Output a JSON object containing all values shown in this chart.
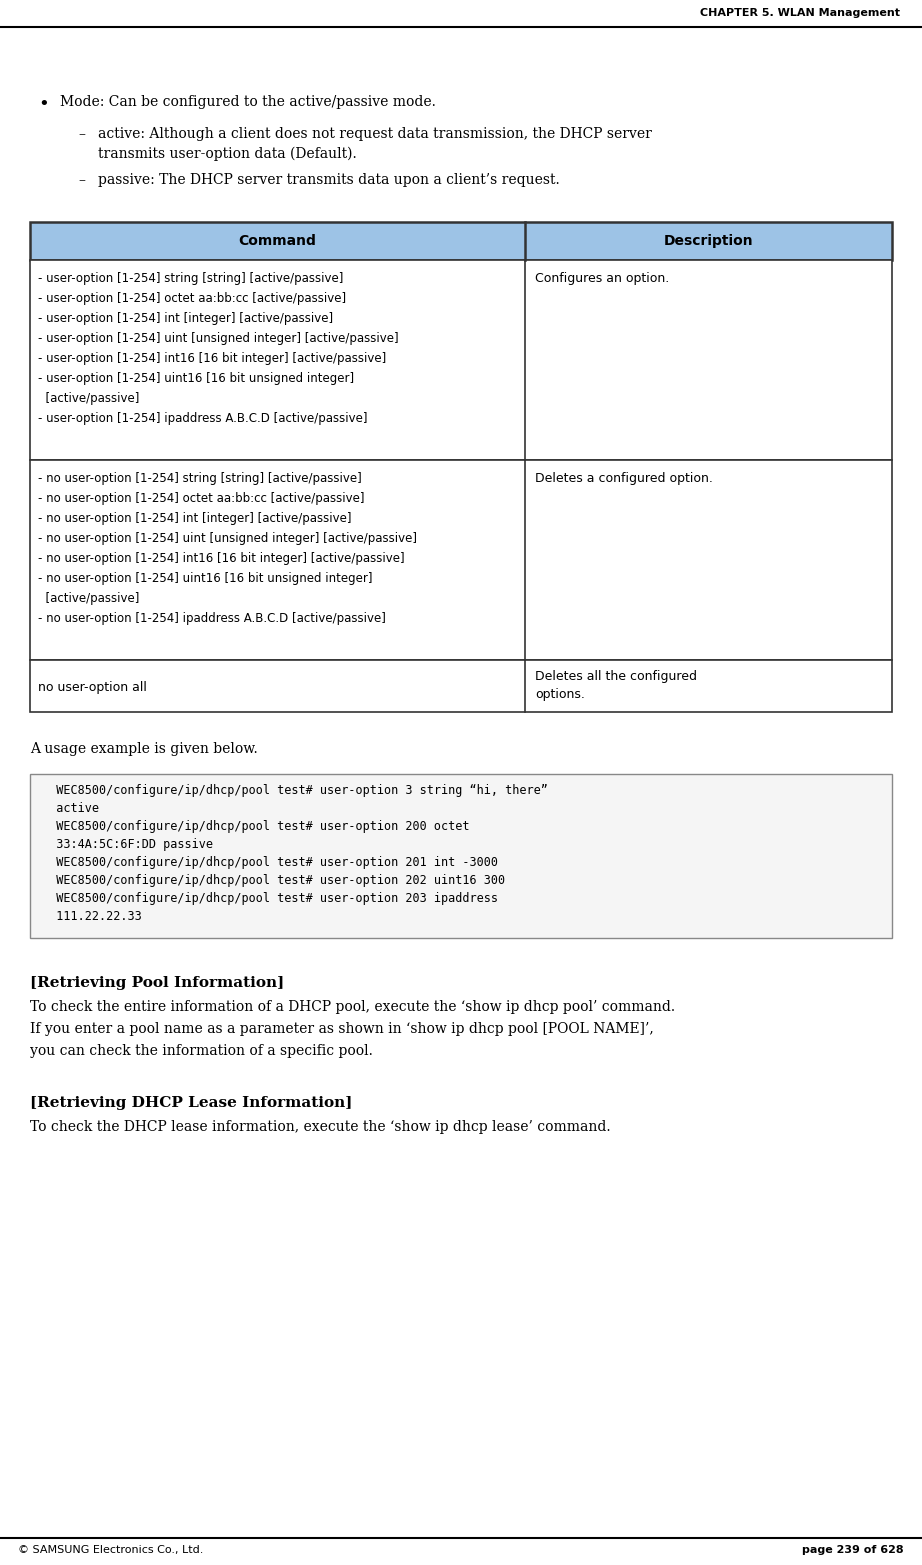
{
  "header_text": "CHAPTER 5. WLAN Management",
  "footer_left": "© SAMSUNG Electronics Co., Ltd.",
  "footer_right": "page 239 of 628",
  "bullet_main": "Mode: Can be configured to the active/passive mode.",
  "sub1_label": "active:",
  "sub1_rest": " Although a client does not request data transmission, the DHCP server\n        transmits user-option data (Default).",
  "sub2_label": "passive:",
  "sub2_rest": " The DHCP server transmits data upon a client’s request.",
  "table_header_bg": "#9DC3E6",
  "table_header_col1": "Command",
  "table_header_col2": "Description",
  "table_row1_lines": [
    "- user-option [1-254] string [string] [active/passive]",
    "- user-option [1-254] octet aa:bb:cc [active/passive]",
    "- user-option [1-254] int [integer] [active/passive]",
    "- user-option [1-254] uint [unsigned integer] [active/passive]",
    "- user-option [1-254] int16 [16 bit integer] [active/passive]",
    "- user-option [1-254] uint16 [16 bit unsigned integer]",
    "  [active/passive]",
    "- user-option [1-254] ipaddress A.B.C.D [active/passive]"
  ],
  "table_row1_col2": "Configures an option.",
  "table_row2_lines": [
    "- no user-option [1-254] string [string] [active/passive]",
    "- no user-option [1-254] octet aa:bb:cc [active/passive]",
    "- no user-option [1-254] int [integer] [active/passive]",
    "- no user-option [1-254] uint [unsigned integer] [active/passive]",
    "- no user-option [1-254] int16 [16 bit integer] [active/passive]",
    "- no user-option [1-254] uint16 [16 bit unsigned integer]",
    "  [active/passive]",
    "- no user-option [1-254] ipaddress A.B.C.D [active/passive]"
  ],
  "table_row2_col2": "Deletes a configured option.",
  "table_row3_col1": "no user-option all",
  "table_row3_col2": "Deletes all the configured\noptions.",
  "usage_intro": "A usage example is given below.",
  "code_lines": [
    "  WEC8500/configure/ip/dhcp/pool test# user-option 3 string “hi, there”",
    "  active",
    "  WEC8500/configure/ip/dhcp/pool test# user-option 200 octet",
    "  33:4A:5C:6F:DD passive",
    "  WEC8500/configure/ip/dhcp/pool test# user-option 201 int -3000",
    "  WEC8500/configure/ip/dhcp/pool test# user-option 202 uint16 300",
    "  WEC8500/configure/ip/dhcp/pool test# user-option 203 ipaddress",
    "  111.22.22.33"
  ],
  "section1_title": "[Retrieving Pool Information]",
  "section1_body_lines": [
    "To check the entire information of a DHCP pool, execute the ‘show ip dhcp pool’ command.",
    "If you enter a pool name as a parameter as shown in ‘show ip dhcp pool [POOL NAME]’,",
    "you can check the information of a specific pool."
  ],
  "section2_title": "[Retrieving DHCP Lease Information]",
  "section2_body": "To check the DHCP lease information, execute the ‘show ip dhcp lease’ command.",
  "bg_color": "#ffffff",
  "text_color": "#000000",
  "code_bg": "#f5f5f5",
  "table_border_color": "#333333"
}
